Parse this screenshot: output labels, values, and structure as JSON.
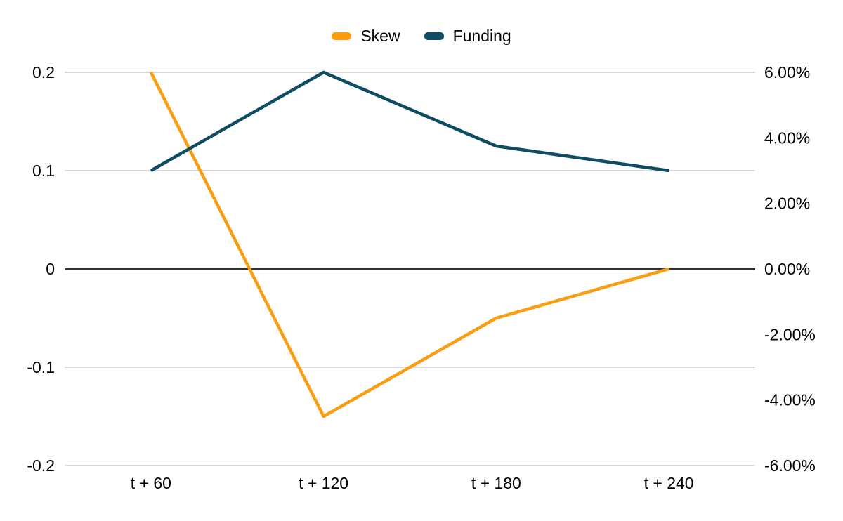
{
  "page": {
    "background": "#ffffff"
  },
  "legend": {
    "position": "top-center",
    "items": [
      {
        "label": "Skew",
        "color": "#FA9D10"
      },
      {
        "label": "Funding",
        "color": "#0E4C63"
      }
    ]
  },
  "chart_data": {
    "type": "line",
    "title": "",
    "categories": [
      "t + 60",
      "t + 120",
      "t + 180",
      "t + 240"
    ],
    "series": [
      {
        "name": "Skew",
        "axis": "left",
        "color": "#FA9D10",
        "values": [
          0.2,
          -0.15,
          -0.05,
          0
        ]
      },
      {
        "name": "Funding",
        "axis": "right",
        "color": "#0E4C63",
        "unit": "percent",
        "values": [
          3.0,
          6.0,
          3.75,
          3.0
        ]
      }
    ],
    "left_axis": {
      "min": -0.2,
      "max": 0.2,
      "tick_labels": [
        "0.2",
        "0.1",
        "0",
        "-0.1",
        "-0.2"
      ]
    },
    "right_axis": {
      "min": -6,
      "max": 6,
      "tick_labels": [
        "6.00%",
        "4.00%",
        "2.00%",
        "0.00%",
        "-2.00%",
        "-4.00%",
        "-6.00%"
      ]
    },
    "grid": true,
    "legend_position": "top",
    "colors": {
      "gridline": "#D9D9D9",
      "zero_line": "#333333",
      "text": "#000000"
    }
  }
}
